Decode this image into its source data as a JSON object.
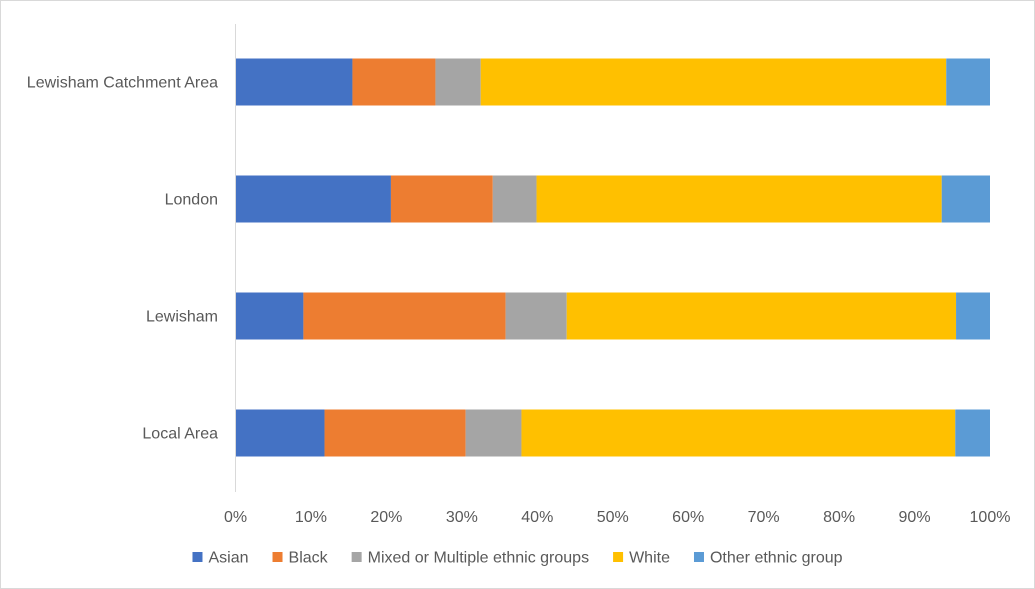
{
  "chart_data": {
    "type": "bar",
    "orientation": "horizontal",
    "stacked": "percent",
    "categories": [
      "Lewisham Catchment Area",
      "London",
      "Lewisham",
      "Local Area"
    ],
    "series": [
      {
        "name": "Asian",
        "color": "#4472C4",
        "values": [
          15.5,
          20.6,
          9.0,
          11.8
        ]
      },
      {
        "name": "Black",
        "color": "#ED7D31",
        "values": [
          11.0,
          13.5,
          26.8,
          18.7
        ]
      },
      {
        "name": "Mixed or Multiple ethnic groups",
        "color": "#A5A5A5",
        "values": [
          6.0,
          5.8,
          8.1,
          7.4
        ]
      },
      {
        "name": "White",
        "color": "#FFC000",
        "values": [
          61.7,
          53.7,
          51.6,
          57.5
        ]
      },
      {
        "name": "Other ethnic group",
        "color": "#5B9BD5",
        "values": [
          5.8,
          6.4,
          4.5,
          4.6
        ]
      }
    ],
    "x_ticks": [
      "0%",
      "10%",
      "20%",
      "30%",
      "40%",
      "50%",
      "60%",
      "70%",
      "80%",
      "90%",
      "100%"
    ],
    "xlim": [
      0,
      100
    ],
    "xlabel": "",
    "ylabel": "",
    "title": "",
    "grid": false,
    "legend_position": "bottom"
  }
}
